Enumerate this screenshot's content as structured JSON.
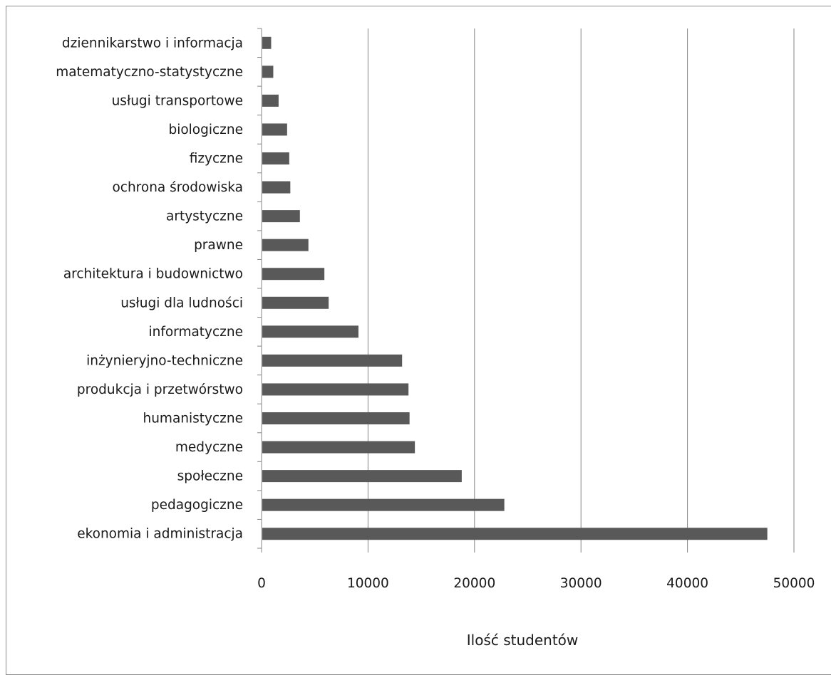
{
  "chart_data": {
    "type": "bar",
    "orientation": "horizontal",
    "categories": [
      "ekonomia i administracja",
      "pedagogiczne",
      "społeczne",
      "medyczne",
      "humanistyczne",
      "produkcja i przetwórstwo",
      "inżynieryjno-techniczne",
      "informatyczne",
      "usługi dla ludności",
      "architektura i budownictwo",
      "prawne",
      "artystyczne",
      "ochrona środowiska",
      "fizyczne",
      "biologiczne",
      "usługi transportowe",
      "matematyczno-statystyczne",
      "dziennikarstwo i informacja"
    ],
    "values": [
      47500,
      22800,
      18800,
      14400,
      13900,
      13800,
      13200,
      9100,
      6300,
      5900,
      4400,
      3600,
      2700,
      2600,
      2400,
      1600,
      1100,
      900
    ],
    "xlabel": "Ilość studentów",
    "ylabel": "",
    "xlim": [
      0,
      50000
    ],
    "xticks": [
      "0",
      "10000",
      "20000",
      "30000",
      "40000",
      "50000"
    ],
    "grid": "vertical major gridlines",
    "legend": "none",
    "bar_color": "#595959",
    "grid_color": "#868686",
    "axis_color": "#868686"
  }
}
